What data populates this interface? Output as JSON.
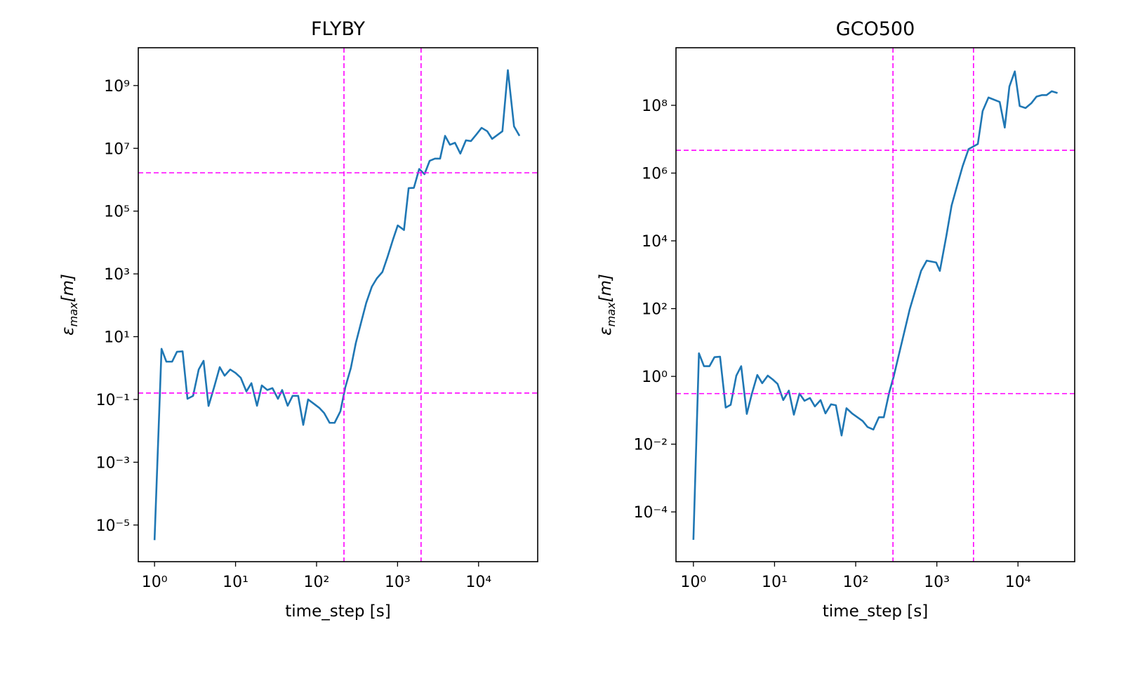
{
  "chart_data": [
    {
      "type": "line",
      "title": "FLYBY",
      "xlabel": "time_step [s]",
      "ylabel": {
        "symbol": "ε",
        "subscript": "max",
        "rest": "[m]"
      },
      "xscale": "log",
      "yscale": "log",
      "xlim": [
        0.63,
        53700
      ],
      "ylim": [
        6.8e-07,
        16000000000.0
      ],
      "xticks": [
        {
          "value": 1,
          "label": "10⁰"
        },
        {
          "value": 10,
          "label": "10¹"
        },
        {
          "value": 100,
          "label": "10²"
        },
        {
          "value": 1000,
          "label": "10³"
        },
        {
          "value": 10000,
          "label": "10⁴"
        }
      ],
      "yticks": [
        {
          "value": 1e-05,
          "label": "10⁻⁵"
        },
        {
          "value": 0.001,
          "label": "10⁻³"
        },
        {
          "value": 0.1,
          "label": "10⁻¹"
        },
        {
          "value": 10,
          "label": "10¹"
        },
        {
          "value": 1000,
          "label": "10³"
        },
        {
          "value": 100000,
          "label": "10⁵"
        },
        {
          "value": 10000000,
          "label": "10⁷"
        },
        {
          "value": 1000000000,
          "label": "10⁹"
        }
      ],
      "x": [
        1,
        1.22,
        1.4,
        1.65,
        1.89,
        2.22,
        2.55,
        2.99,
        3.51,
        4.03,
        4.64,
        5.45,
        6.38,
        7.33,
        8.6,
        10,
        11.6,
        13.6,
        15.7,
        18.4,
        21.1,
        24.7,
        28.5,
        33.4,
        37.6,
        44,
        50.6,
        59.3,
        68.5,
        78.6,
        92,
        108,
        124,
        145,
        167,
        197,
        226,
        265,
        305,
        358,
        410,
        481,
        555,
        650,
        750,
        877,
        1005,
        1200,
        1370,
        1590,
        1850,
        2150,
        2490,
        2890,
        3350,
        3860,
        4430,
        5120,
        5960,
        6980,
        8050,
        9430,
        10900,
        12800,
        14700,
        19700,
        23000,
        27400,
        32000
      ],
      "series": [
        {
          "color": "#1f77b4",
          "values": [
            3.3e-06,
            4.1,
            1.6,
            1.6,
            3.3,
            3.4,
            0.105,
            0.13,
            0.9,
            1.7,
            0.062,
            0.25,
            1.07,
            0.57,
            0.9,
            0.7,
            0.49,
            0.18,
            0.33,
            0.063,
            0.28,
            0.2,
            0.23,
            0.105,
            0.2,
            0.063,
            0.13,
            0.13,
            0.0155,
            0.1,
            0.074,
            0.054,
            0.037,
            0.018,
            0.018,
            0.042,
            0.24,
            1.0,
            6.2,
            31,
            118,
            390,
            720,
            1150,
            3400,
            12300,
            35000,
            25000,
            540000,
            550000,
            2200000,
            1500000,
            4000000,
            4700000,
            4700000,
            25000000,
            13000000,
            15000000,
            6800000,
            18000000,
            17000000,
            28000000,
            45000000,
            35000000,
            20000000,
            35000000,
            3100000000,
            50000000,
            25000000
          ]
        }
      ],
      "vlines": {
        "values": [
          218,
          1950
        ],
        "color": "#ff00ff"
      },
      "hlines": {
        "values": [
          1660000,
          0.16
        ],
        "color": "#ff00ff"
      }
    },
    {
      "type": "line",
      "title": "GCO500",
      "xlabel": "time_step [s]",
      "ylabel": {
        "symbol": "ε",
        "subscript": "max",
        "rest": "[m]"
      },
      "xscale": "log",
      "yscale": "log",
      "xlim": [
        0.61,
        50000
      ],
      "ylim": [
        3.4e-06,
        5000000000.0
      ],
      "xticks": [
        {
          "value": 1,
          "label": "10⁰"
        },
        {
          "value": 10,
          "label": "10¹"
        },
        {
          "value": 100,
          "label": "10²"
        },
        {
          "value": 1000,
          "label": "10³"
        },
        {
          "value": 10000,
          "label": "10⁴"
        }
      ],
      "yticks": [
        {
          "value": 0.0001,
          "label": "10⁻⁴"
        },
        {
          "value": 0.01,
          "label": "10⁻²"
        },
        {
          "value": 1,
          "label": "10⁰"
        },
        {
          "value": 100,
          "label": "10²"
        },
        {
          "value": 10000,
          "label": "10⁴"
        },
        {
          "value": 1000000,
          "label": "10⁶"
        },
        {
          "value": 100000000,
          "label": "10⁸"
        }
      ],
      "x": [
        1,
        1.17,
        1.35,
        1.58,
        1.82,
        2.13,
        2.5,
        2.88,
        3.38,
        3.88,
        4.55,
        5.24,
        6.13,
        7.05,
        8.25,
        9.5,
        10.9,
        12.8,
        15,
        17.3,
        20.3,
        23.4,
        27.3,
        31.4,
        36.9,
        42.4,
        49.7,
        57,
        67,
        77,
        90,
        122,
        140,
        165,
        193,
        222,
        260,
        292,
        463,
        640,
        750,
        980,
        1090,
        1310,
        1520,
        1780,
        2080,
        2460,
        3200,
        3670,
        4330,
        5950,
        6870,
        7840,
        9140,
        10500,
        12400,
        14600,
        16900,
        19600,
        22500,
        26100,
        30700
      ],
      "series": [
        {
          "color": "#1f77b4",
          "values": [
            1.5e-05,
            4.8,
            2.0,
            2.0,
            3.7,
            3.8,
            0.12,
            0.145,
            1.05,
            2.0,
            0.078,
            0.3,
            1.1,
            0.63,
            1.05,
            0.81,
            0.6,
            0.2,
            0.38,
            0.074,
            0.31,
            0.19,
            0.23,
            0.13,
            0.2,
            0.081,
            0.15,
            0.14,
            0.018,
            0.115,
            0.081,
            0.048,
            0.032,
            0.027,
            0.062,
            0.062,
            0.35,
            0.93,
            95,
            1300,
            2600,
            2300,
            1300,
            14000,
            110000,
            430000,
            1600000,
            5100000,
            7200000,
            68000000,
            170000000,
            126000000,
            22000000,
            360000000,
            1000000000,
            95000000,
            83000000,
            115000000,
            180000000,
            200000000,
            200000000,
            260000000,
            230000000
          ]
        }
      ],
      "vlines": {
        "values": [
          288,
          2830
        ],
        "color": "#ff00ff"
      },
      "hlines": {
        "values": [
          4700000,
          0.31
        ],
        "color": "#ff00ff"
      }
    }
  ]
}
